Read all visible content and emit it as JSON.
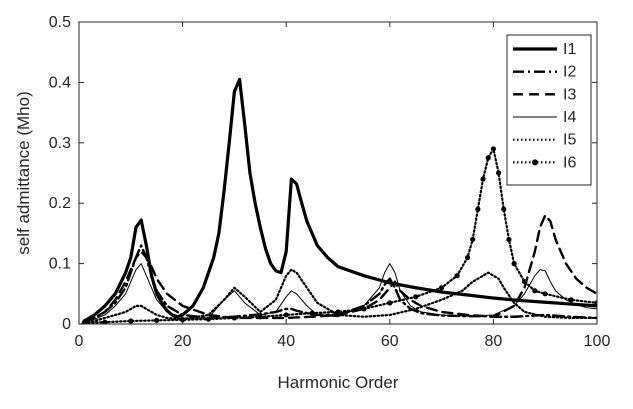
{
  "chart_data": {
    "type": "line",
    "xlabel": "Harmonic Order",
    "ylabel": "self admittance (Mho)",
    "xlim": [
      0,
      100
    ],
    "ylim": [
      0,
      0.5
    ],
    "xticks": [
      0,
      20,
      40,
      60,
      80,
      100
    ],
    "yticks": [
      0,
      0.1,
      0.2,
      0.3,
      0.4,
      0.5
    ],
    "xtick_labels": [
      "0",
      "20",
      "40",
      "60",
      "80",
      "100"
    ],
    "ytick_labels": [
      "0",
      "0.1",
      "0.2",
      "0.3",
      "0.4",
      "0.5"
    ],
    "grid": false,
    "legend_position": "top-right",
    "series": [
      {
        "name": "I1",
        "style": "solid-thick",
        "color": "#000000",
        "x": [
          1,
          3,
          5,
          7,
          9,
          10,
          11,
          12,
          13,
          14,
          15,
          16,
          17,
          18,
          19,
          20,
          22,
          24,
          26,
          27,
          28,
          29,
          30,
          31,
          32,
          33,
          34,
          35,
          36,
          37,
          38,
          39,
          40,
          41,
          42,
          43,
          44,
          45,
          46,
          48,
          50,
          55,
          60,
          65,
          70,
          75,
          80,
          85,
          90,
          95,
          100
        ],
        "y": [
          0.005,
          0.015,
          0.03,
          0.05,
          0.085,
          0.11,
          0.16,
          0.172,
          0.13,
          0.08,
          0.05,
          0.035,
          0.022,
          0.015,
          0.012,
          0.015,
          0.03,
          0.06,
          0.11,
          0.15,
          0.22,
          0.3,
          0.385,
          0.405,
          0.33,
          0.25,
          0.2,
          0.16,
          0.125,
          0.1,
          0.088,
          0.085,
          0.12,
          0.24,
          0.232,
          0.2,
          0.17,
          0.15,
          0.13,
          0.11,
          0.095,
          0.08,
          0.068,
          0.06,
          0.053,
          0.048,
          0.043,
          0.039,
          0.036,
          0.033,
          0.03
        ]
      },
      {
        "name": "I2",
        "style": "dash-dot",
        "color": "#000000",
        "x": [
          1,
          3,
          5,
          7,
          9,
          10,
          11,
          12,
          13,
          14,
          15,
          17,
          20,
          25,
          30,
          35,
          38,
          40,
          41,
          42,
          44,
          46,
          50,
          55,
          58,
          59,
          60,
          61,
          62,
          64,
          66,
          70,
          75,
          78,
          79,
          80,
          81,
          82,
          84,
          86,
          90,
          95,
          100
        ],
        "y": [
          0.004,
          0.01,
          0.02,
          0.035,
          0.06,
          0.085,
          0.11,
          0.13,
          0.11,
          0.08,
          0.055,
          0.03,
          0.015,
          0.01,
          0.012,
          0.016,
          0.02,
          0.025,
          0.025,
          0.022,
          0.018,
          0.015,
          0.015,
          0.03,
          0.05,
          0.065,
          0.075,
          0.06,
          0.04,
          0.025,
          0.018,
          0.014,
          0.013,
          0.013,
          0.013,
          0.012,
          0.012,
          0.012,
          0.012,
          0.013,
          0.015,
          0.012,
          0.01
        ]
      },
      {
        "name": "I3",
        "style": "dashed",
        "color": "#000000",
        "x": [
          1,
          3,
          5,
          7,
          9,
          10,
          11,
          12,
          13,
          14,
          15,
          17,
          20,
          25,
          30,
          35,
          40,
          45,
          50,
          55,
          58,
          60,
          61,
          62,
          64,
          66,
          70,
          75,
          80,
          84,
          86,
          88,
          89,
          90,
          91,
          92,
          94,
          96,
          98,
          100
        ],
        "y": [
          0.003,
          0.01,
          0.02,
          0.04,
          0.07,
          0.09,
          0.11,
          0.12,
          0.11,
          0.095,
          0.075,
          0.05,
          0.03,
          0.015,
          0.01,
          0.01,
          0.01,
          0.012,
          0.015,
          0.025,
          0.04,
          0.06,
          0.07,
          0.055,
          0.04,
          0.03,
          0.02,
          0.015,
          0.012,
          0.03,
          0.06,
          0.12,
          0.16,
          0.18,
          0.17,
          0.14,
          0.1,
          0.075,
          0.06,
          0.05
        ]
      },
      {
        "name": "I4",
        "style": "solid-thin",
        "color": "#000000",
        "x": [
          1,
          3,
          5,
          7,
          9,
          10,
          11,
          12,
          13,
          14,
          15,
          17,
          20,
          25,
          28,
          30,
          32,
          35,
          38,
          40,
          41,
          42,
          44,
          46,
          50,
          55,
          58,
          59,
          60,
          61,
          62,
          64,
          66,
          70,
          75,
          80,
          84,
          86,
          88,
          89,
          90,
          91,
          92,
          94,
          96,
          98,
          100
        ],
        "y": [
          0.002,
          0.008,
          0.015,
          0.03,
          0.05,
          0.07,
          0.09,
          0.1,
          0.08,
          0.06,
          0.04,
          0.02,
          0.01,
          0.01,
          0.04,
          0.055,
          0.035,
          0.015,
          0.02,
          0.045,
          0.055,
          0.05,
          0.03,
          0.015,
          0.012,
          0.03,
          0.06,
          0.085,
          0.1,
          0.085,
          0.055,
          0.03,
          0.02,
          0.015,
          0.013,
          0.015,
          0.03,
          0.05,
          0.08,
          0.09,
          0.088,
          0.07,
          0.055,
          0.04,
          0.032,
          0.027,
          0.025
        ]
      },
      {
        "name": "I5",
        "style": "dotted",
        "color": "#000000",
        "x": [
          1,
          3,
          5,
          7,
          9,
          10,
          11,
          12,
          13,
          14,
          15,
          17,
          20,
          25,
          28,
          30,
          32,
          35,
          38,
          40,
          41,
          42,
          44,
          46,
          50,
          55,
          60,
          65,
          70,
          74,
          76,
          78,
          79,
          80,
          81,
          82,
          84,
          86,
          90,
          95,
          100
        ],
        "y": [
          0.001,
          0.005,
          0.01,
          0.015,
          0.02,
          0.025,
          0.03,
          0.03,
          0.025,
          0.02,
          0.015,
          0.01,
          0.008,
          0.015,
          0.04,
          0.06,
          0.045,
          0.02,
          0.04,
          0.08,
          0.09,
          0.085,
          0.06,
          0.035,
          0.015,
          0.012,
          0.015,
          0.025,
          0.04,
          0.055,
          0.07,
          0.08,
          0.085,
          0.08,
          0.075,
          0.06,
          0.035,
          0.02,
          0.012,
          0.01,
          0.01
        ]
      },
      {
        "name": "I6",
        "style": "dotted-markers",
        "color": "#000000",
        "x": [
          1,
          5,
          10,
          15,
          20,
          25,
          30,
          35,
          40,
          45,
          50,
          55,
          60,
          65,
          70,
          73,
          75,
          76,
          77,
          78,
          79,
          80,
          81,
          82,
          83,
          84,
          86,
          88,
          90,
          95,
          100
        ],
        "y": [
          0.002,
          0.003,
          0.005,
          0.006,
          0.007,
          0.008,
          0.01,
          0.012,
          0.015,
          0.018,
          0.02,
          0.025,
          0.035,
          0.045,
          0.06,
          0.08,
          0.11,
          0.14,
          0.19,
          0.24,
          0.275,
          0.29,
          0.25,
          0.19,
          0.14,
          0.1,
          0.07,
          0.055,
          0.05,
          0.04,
          0.035
        ]
      }
    ]
  }
}
